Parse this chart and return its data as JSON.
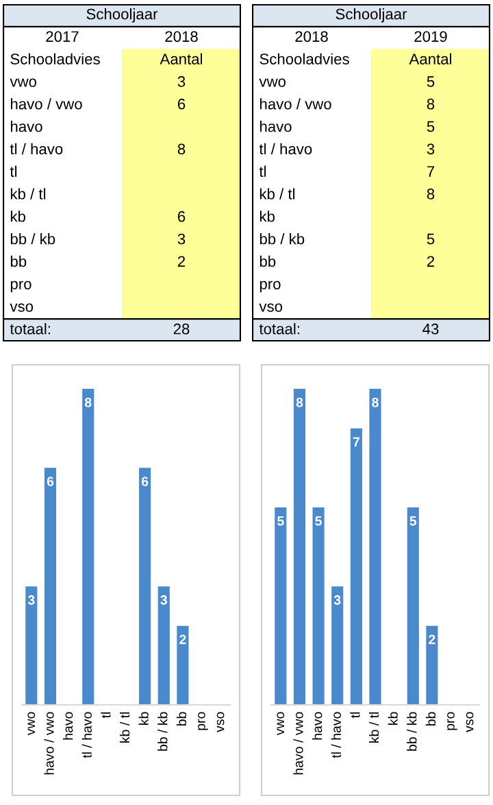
{
  "chart_data": [
    {
      "type": "other",
      "title": "Schooljaar",
      "annotations": [
        "2017",
        "2018",
        "Schooladvies",
        "Aantal",
        "totaal:",
        "28"
      ],
      "categories": [
        "vwo",
        "havo / vwo",
        "havo",
        "tl / havo",
        "tl",
        "kb / tl",
        "kb",
        "bb / kb",
        "bb",
        "pro",
        "vso"
      ],
      "value_labels": [
        "3",
        "6",
        null,
        "8",
        null,
        null,
        "6",
        "3",
        "2",
        null,
        null
      ]
    },
    {
      "type": "other",
      "title": "Schooljaar",
      "annotations": [
        "2018",
        "2019",
        "Schooladvies",
        "Aantal",
        "totaal:",
        "43"
      ],
      "categories": [
        "vwo",
        "havo / vwo",
        "havo",
        "tl / havo",
        "tl",
        "kb / tl",
        "kb",
        "bb / kb",
        "bb",
        "pro",
        "vso"
      ],
      "value_labels": [
        "5",
        "8",
        "5",
        "3",
        "7",
        "8",
        null,
        "5",
        "2",
        null,
        null
      ]
    },
    {
      "type": "bar",
      "categories": [
        "vwo",
        "havo / vwo",
        "havo",
        "tl / havo",
        "tl",
        "kb / tl",
        "kb",
        "bb / kb",
        "bb",
        "pro",
        "vso"
      ],
      "values": [
        3,
        6,
        null,
        8,
        null,
        null,
        6,
        3,
        2,
        null,
        null
      ],
      "color": "#4a89cc",
      "data_labels": true,
      "tick_labels": "x",
      "grid": false,
      "legend": false
    },
    {
      "type": "bar",
      "categories": [
        "vwo",
        "havo / vwo",
        "havo",
        "tl / havo",
        "tl",
        "kb / tl",
        "kb",
        "bb / kb",
        "bb",
        "pro",
        "vso"
      ],
      "values": [
        5,
        8,
        5,
        3,
        7,
        8,
        null,
        5,
        2,
        null,
        null
      ],
      "color": "#4a89cc",
      "data_labels": true,
      "tick_labels": "x",
      "grid": false,
      "legend": false
    }
  ]
}
